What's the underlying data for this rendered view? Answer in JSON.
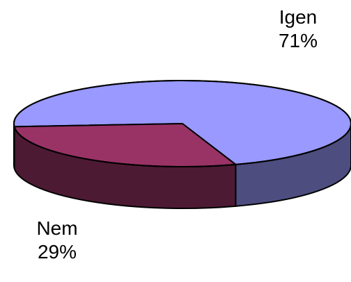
{
  "chart_data": {
    "type": "pie",
    "title": "",
    "slices": [
      {
        "label": "Igen",
        "value": 71,
        "value_label": "71%",
        "top_color": "#9999ff",
        "side_color": "#4d4d80"
      },
      {
        "label": "Nem",
        "value": 29,
        "value_label": "29%",
        "top_color": "#993366",
        "side_color": "#4d1a33"
      }
    ]
  }
}
